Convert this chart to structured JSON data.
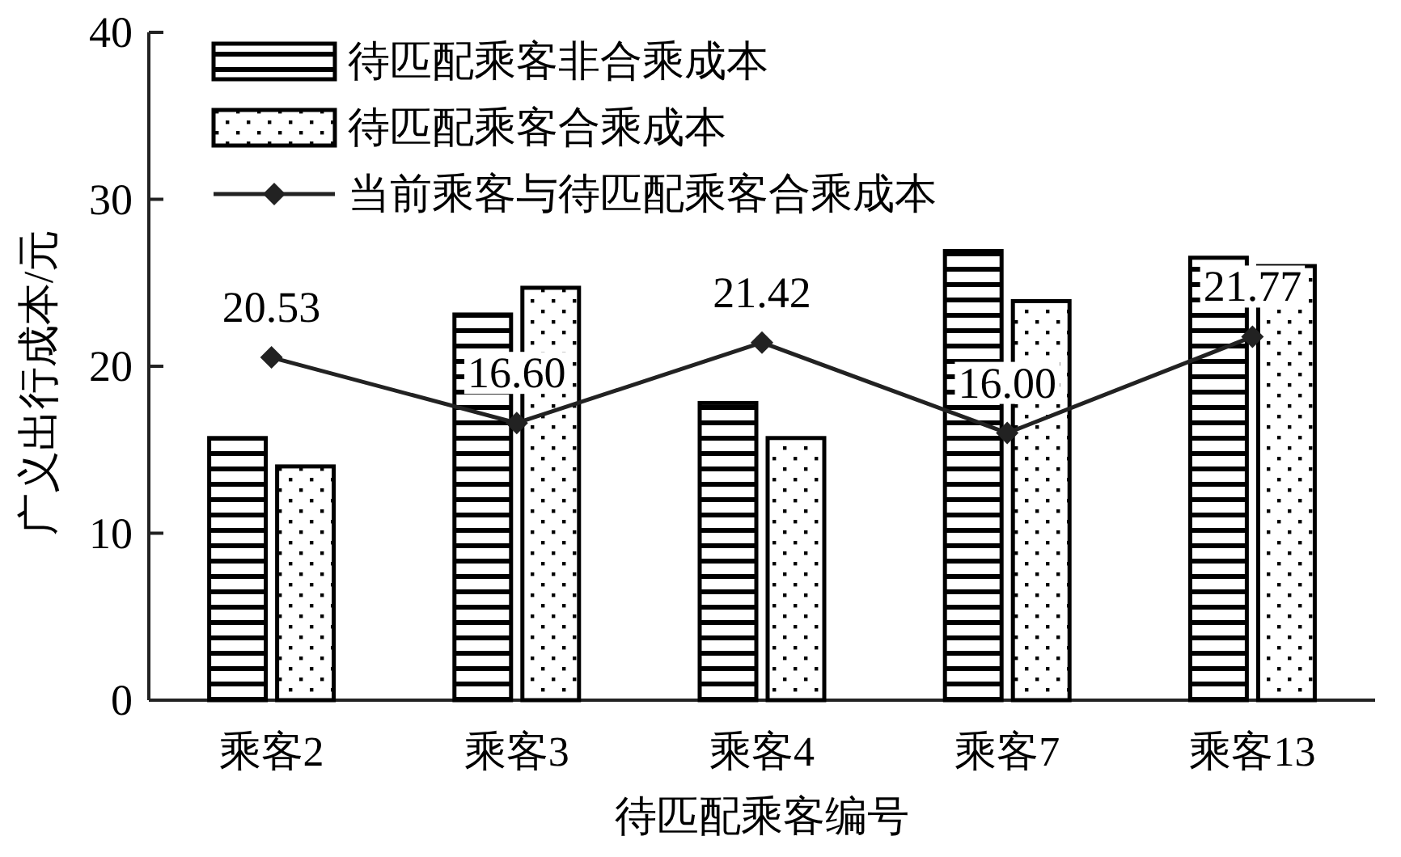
{
  "chart_data": {
    "type": "bar",
    "xlabel": "待匹配乘客编号",
    "ylabel": "广义出行成本/元",
    "categories": [
      "乘客2",
      "乘客3",
      "乘客4",
      "乘客7",
      "乘客13"
    ],
    "series": [
      {
        "name": "待匹配乘客非合乘成本",
        "color": "#000000",
        "values": [
          15.7,
          23.1,
          17.8,
          26.9,
          26.5
        ]
      },
      {
        "name": "待匹配乘客合乘成本",
        "color": "#000000",
        "values": [
          14.0,
          24.7,
          15.7,
          23.9,
          26.0
        ]
      },
      {
        "name": "当前乘客与待匹配乘客合乘成本",
        "type": "line",
        "color": "#222222",
        "marker": "diamond",
        "values": [
          20.53,
          16.6,
          21.42,
          16.0,
          21.77
        ],
        "value_labels": [
          "20.53",
          "16.60",
          "21.42",
          "16.00",
          "21.77"
        ]
      }
    ],
    "ylim": [
      0,
      40
    ],
    "yticks": [
      0,
      10,
      20,
      30,
      40
    ],
    "grid": false,
    "legend": "top left"
  }
}
